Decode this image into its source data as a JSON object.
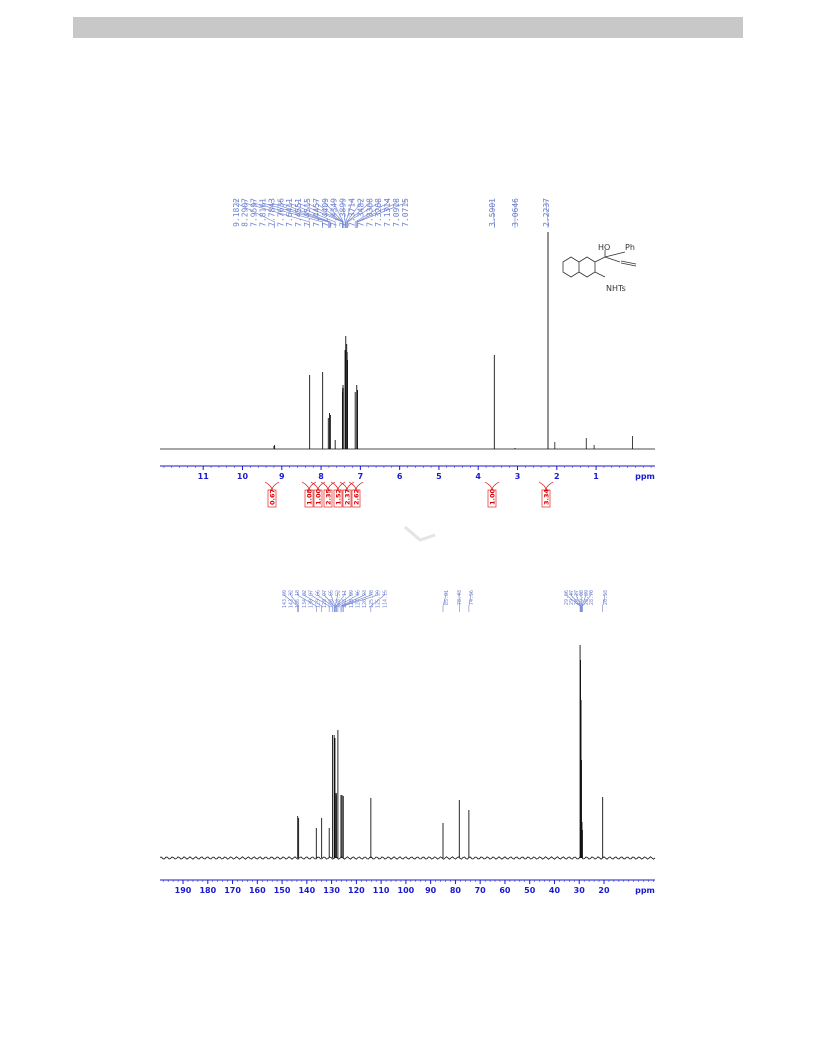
{
  "structure": {
    "labels": [
      "HO",
      "Ph",
      "NHTs"
    ]
  },
  "spectra": [
    {
      "peak_labels": [
        "9.1822",
        "8.2907",
        "7.9597",
        "7.8161",
        "7.7843",
        "7.7636",
        "7.6411",
        "7.4551",
        "7.4515",
        "7.4457",
        "7.4409",
        "7.4349",
        "7.3899",
        "7.3714",
        "7.3482",
        "7.3368",
        "7.3268",
        "7.1314",
        "7.0918",
        "7.0715",
        "3.5901",
        "3.0646",
        "2.2237"
      ],
      "xlim": [
        12.1,
        -0.5
      ],
      "xticks": [
        11,
        10,
        9,
        8,
        7,
        6,
        5,
        4,
        3,
        2,
        1
      ],
      "x_label": "ppm",
      "integrals": [
        "0.67",
        "1.08",
        "1.00",
        "2.35",
        "1.52",
        "2.37",
        "2.62",
        "1.00",
        "3.34"
      ]
    },
    {
      "peak_labels": [
        "143.69",
        "143.32",
        "136.18",
        "134.02",
        "130.97",
        "129.66",
        "128.97",
        "128.65",
        "128.52",
        "128.11",
        "128.09",
        "127.46",
        "126.23",
        "125.78",
        "125.29",
        "114.15",
        "85.01",
        "78.43",
        "74.56",
        "29.66",
        "29.47",
        "29.27",
        "29.08",
        "28.89",
        "28.70",
        "20.53"
      ],
      "xlim": [
        199.3,
        -0.6
      ],
      "xticks": [
        190,
        180,
        170,
        160,
        150,
        140,
        130,
        120,
        110,
        100,
        90,
        80,
        70,
        60,
        50,
        40,
        30,
        20
      ],
      "x_label": "ppm"
    }
  ]
}
